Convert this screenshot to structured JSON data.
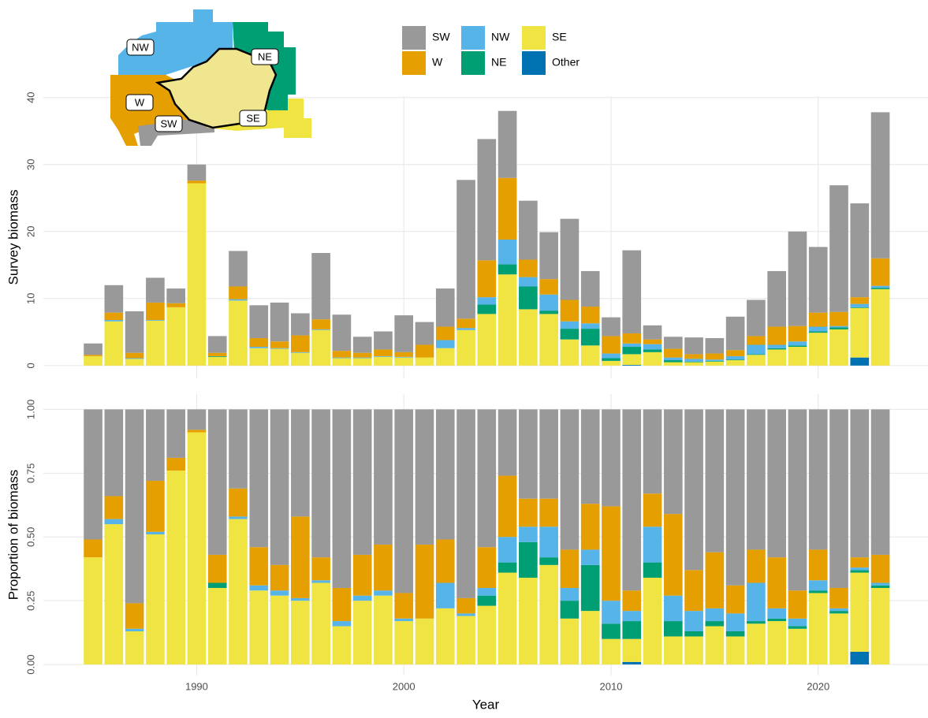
{
  "map": {
    "labels": [
      "NW",
      "NE",
      "W",
      "SW",
      "SE"
    ]
  },
  "chart_data": [
    {
      "type": "bar",
      "stacked": true,
      "y_label": "Survey biomass",
      "grid": true,
      "x": [
        1985,
        1986,
        1987,
        1988,
        1989,
        1990,
        1991,
        1992,
        1993,
        1994,
        1995,
        1996,
        1997,
        1998,
        1999,
        2000,
        2001,
        2002,
        2003,
        2004,
        2005,
        2006,
        2007,
        2008,
        2009,
        2010,
        2011,
        2012,
        2013,
        2014,
        2015,
        2016,
        2017,
        2018,
        2019,
        2020,
        2021,
        2022,
        2023
      ],
      "xlim": [
        1982.6,
        2025.3
      ],
      "xticks": [
        1990,
        2000,
        2010,
        2020
      ],
      "ylim": [
        -1.9,
        40.2
      ],
      "yticks": [
        0,
        10,
        20,
        30,
        40
      ],
      "series": [
        {
          "name": "SW",
          "color": "#999999",
          "values": [
            1.7,
            4.1,
            6.2,
            3.7,
            2.2,
            2.4,
            2.5,
            5.3,
            4.9,
            5.8,
            3.3,
            9.9,
            5.4,
            2.4,
            2.7,
            5.5,
            3.4,
            5.7,
            20.7,
            18.1,
            10,
            8.8,
            7,
            12.1,
            5.3,
            2.8,
            12.4,
            2.1,
            1.8,
            2.5,
            2.3,
            5,
            5.4,
            8.3,
            14.1,
            9.8,
            18.9,
            14,
            21.8
          ]
        },
        {
          "name": "W",
          "color": "#E69F00",
          "values": [
            0.2,
            1.1,
            0.8,
            2.6,
            0.6,
            0.4,
            0.5,
            1.9,
            1.3,
            1.0,
            2.5,
            1.5,
            1.0,
            0.7,
            1.0,
            0.7,
            1.9,
            2.0,
            1.4,
            5.5,
            9.2,
            2.6,
            2.3,
            3.2,
            2.5,
            2.6,
            1.5,
            0.7,
            1.3,
            0.7,
            0.9,
            0.9,
            1.3,
            2.7,
            2.3,
            2.1,
            2.1,
            1.0,
            4.1
          ]
        },
        {
          "name": "NW",
          "color": "#56B4E9",
          "values": [
            0,
            0.2,
            0.1,
            0.1,
            0,
            0,
            0,
            0.2,
            0.2,
            0.1,
            0.1,
            0.1,
            0.1,
            0.1,
            0.1,
            0.1,
            0,
            1.2,
            0.3,
            1.1,
            3.7,
            1.4,
            2.4,
            1.1,
            0.8,
            0.7,
            0.5,
            0.8,
            0.4,
            0.4,
            0.2,
            0.5,
            1.4,
            0.5,
            0.6,
            0.7,
            0.2,
            0.5,
            0.3
          ]
        },
        {
          "name": "NE",
          "color": "#009E73",
          "values": [
            0,
            0,
            0,
            0,
            0,
            0,
            0.1,
            0,
            0,
            0,
            0,
            0,
            0,
            0,
            0,
            0,
            0,
            0,
            0,
            1.4,
            1.5,
            3.4,
            0.5,
            1.6,
            2.5,
            0.4,
            1.1,
            0.4,
            0.3,
            0.1,
            0.1,
            0.1,
            0.1,
            0.2,
            0.2,
            0.2,
            0.3,
            0.1,
            0.2
          ]
        },
        {
          "name": "SE",
          "color": "#F0E442",
          "values": [
            1.4,
            6.6,
            1.0,
            6.7,
            8.7,
            27.2,
            1.3,
            9.7,
            2.6,
            2.5,
            1.9,
            5.3,
            1.1,
            1.1,
            1.3,
            1.2,
            1.2,
            2.6,
            5.3,
            7.7,
            13.6,
            8.4,
            7.7,
            3.9,
            3.0,
            0.7,
            1.6,
            2.0,
            0.5,
            0.5,
            0.6,
            0.8,
            1.6,
            2.4,
            2.8,
            4.9,
            5.4,
            7.4,
            11.4
          ]
        },
        {
          "name": "Other",
          "color": "#0072B2",
          "values": [
            0,
            0,
            0,
            0,
            0,
            0,
            0,
            0,
            0,
            0,
            0,
            0,
            0,
            0,
            0,
            0,
            0,
            0,
            0,
            0,
            0,
            0,
            0,
            0,
            0,
            0,
            0.1,
            0,
            0,
            0,
            0,
            0,
            0,
            0,
            0,
            0,
            0,
            1.2,
            0
          ]
        }
      ]
    },
    {
      "type": "bar",
      "stacked": true,
      "y_label": "Proportion of biomass",
      "x_label": "Year",
      "grid": true,
      "x": [
        1985,
        1986,
        1987,
        1988,
        1989,
        1990,
        1991,
        1992,
        1993,
        1994,
        1995,
        1996,
        1997,
        1998,
        1999,
        2000,
        2001,
        2002,
        2003,
        2004,
        2005,
        2006,
        2007,
        2008,
        2009,
        2010,
        2011,
        2012,
        2013,
        2014,
        2015,
        2016,
        2017,
        2018,
        2019,
        2020,
        2021,
        2022,
        2023
      ],
      "xlim": [
        1982.6,
        2025.3
      ],
      "xticks": [
        1990,
        2000,
        2010,
        2020
      ],
      "ylim": [
        -0.043,
        1.06
      ],
      "yticks": [
        {
          "value": 0,
          "label": "0.00"
        },
        {
          "value": 0.25,
          "label": "0.25"
        },
        {
          "value": 0.5,
          "label": "0.50"
        },
        {
          "value": 0.75,
          "label": "0.75"
        },
        {
          "value": 1,
          "label": "1.00"
        }
      ],
      "series": [
        {
          "color": "#999999",
          "values": [
            0.51,
            0.34,
            0.76,
            0.28,
            0.19,
            0.08,
            0.57,
            0.31,
            0.54,
            0.61,
            0.42,
            0.58,
            0.7,
            0.57,
            0.53,
            0.72,
            0.53,
            0.51,
            0.74,
            0.54,
            0.26,
            0.35,
            0.35,
            0.55,
            0.37,
            0.38,
            0.71,
            0.33,
            0.41,
            0.63,
            0.56,
            0.69,
            0.55,
            0.58,
            0.71,
            0.55,
            0.7,
            0.58,
            0.57
          ]
        },
        {
          "color": "#E69F00",
          "values": [
            0.07,
            0.09,
            0.1,
            0.2,
            0.05,
            0.01,
            0.11,
            0.11,
            0.15,
            0.1,
            0.32,
            0.09,
            0.13,
            0.16,
            0.18,
            0.1,
            0.29,
            0.17,
            0.06,
            0.16,
            0.24,
            0.11,
            0.11,
            0.15,
            0.18,
            0.37,
            0.08,
            0.13,
            0.32,
            0.16,
            0.22,
            0.11,
            0.13,
            0.2,
            0.11,
            0.12,
            0.08,
            0.04,
            0.11
          ]
        },
        {
          "color": "#56B4E9",
          "values": [
            0,
            0.02,
            0.01,
            0.01,
            0,
            0,
            0,
            0.01,
            0.02,
            0.02,
            0.01,
            0.01,
            0.02,
            0.02,
            0.02,
            0.01,
            0,
            0.1,
            0.01,
            0.03,
            0.1,
            0.06,
            0.12,
            0.05,
            0.06,
            0.09,
            0.04,
            0.14,
            0.1,
            0.08,
            0.05,
            0.07,
            0.15,
            0.04,
            0.03,
            0.04,
            0.01,
            0.01,
            0.01
          ]
        },
        {
          "color": "#009E73",
          "values": [
            0,
            0,
            0,
            0,
            0,
            0,
            0.02,
            0,
            0,
            0,
            0,
            0,
            0,
            0,
            0,
            0,
            0,
            0,
            0,
            0.04,
            0.04,
            0.14,
            0.03,
            0.07,
            0.18,
            0.06,
            0.07,
            0.06,
            0.06,
            0.02,
            0.02,
            0.02,
            0.01,
            0.01,
            0.01,
            0.01,
            0.01,
            0.01,
            0.01
          ]
        },
        {
          "color": "#F0E442",
          "values": [
            0.42,
            0.55,
            0.13,
            0.51,
            0.76,
            0.91,
            0.3,
            0.57,
            0.29,
            0.27,
            0.25,
            0.32,
            0.15,
            0.25,
            0.27,
            0.17,
            0.18,
            0.22,
            0.19,
            0.23,
            0.36,
            0.34,
            0.39,
            0.18,
            0.21,
            0.1,
            0.09,
            0.34,
            0.11,
            0.11,
            0.15,
            0.11,
            0.16,
            0.17,
            0.14,
            0.28,
            0.2,
            0.31,
            0.3
          ]
        },
        {
          "color": "#0072B2",
          "values": [
            0,
            0,
            0,
            0,
            0,
            0,
            0,
            0,
            0,
            0,
            0,
            0,
            0,
            0,
            0,
            0,
            0,
            0,
            0,
            0,
            0,
            0,
            0,
            0,
            0,
            0,
            0.01,
            0,
            0,
            0,
            0,
            0,
            0,
            0,
            0,
            0,
            0,
            0.05,
            0
          ]
        }
      ]
    }
  ]
}
